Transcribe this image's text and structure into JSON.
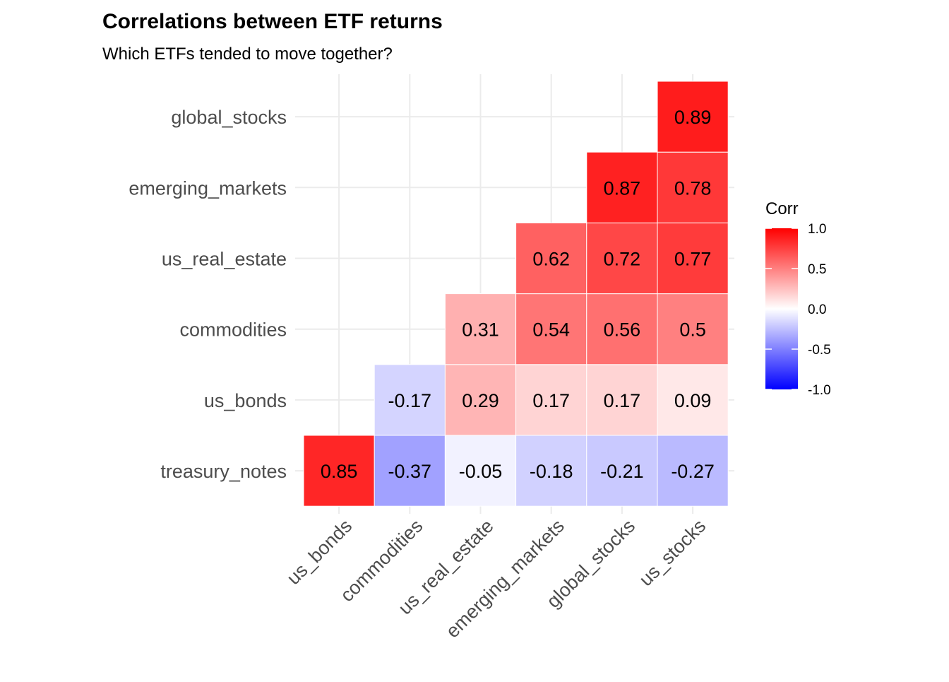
{
  "chart_data": {
    "type": "heatmap",
    "title": "Correlations between ETF returns",
    "subtitle": "Which ETFs tended to move together?",
    "xlabel": "",
    "ylabel": "",
    "x_categories": [
      "us_bonds",
      "commodities",
      "us_real_estate",
      "emerging_markets",
      "global_stocks",
      "us_stocks"
    ],
    "y_categories": [
      "treasury_notes",
      "us_bonds",
      "commodities",
      "us_real_estate",
      "emerging_markets",
      "global_stocks"
    ],
    "cells": [
      {
        "x": "us_bonds",
        "y": "treasury_notes",
        "value": 0.85,
        "label": "0.85"
      },
      {
        "x": "commodities",
        "y": "treasury_notes",
        "value": -0.37,
        "label": "-0.37"
      },
      {
        "x": "us_real_estate",
        "y": "treasury_notes",
        "value": -0.05,
        "label": "-0.05"
      },
      {
        "x": "emerging_markets",
        "y": "treasury_notes",
        "value": -0.18,
        "label": "-0.18"
      },
      {
        "x": "global_stocks",
        "y": "treasury_notes",
        "value": -0.21,
        "label": "-0.21"
      },
      {
        "x": "us_stocks",
        "y": "treasury_notes",
        "value": -0.27,
        "label": "-0.27"
      },
      {
        "x": "commodities",
        "y": "us_bonds",
        "value": -0.17,
        "label": "-0.17"
      },
      {
        "x": "us_real_estate",
        "y": "us_bonds",
        "value": 0.29,
        "label": "0.29"
      },
      {
        "x": "emerging_markets",
        "y": "us_bonds",
        "value": 0.17,
        "label": "0.17"
      },
      {
        "x": "global_stocks",
        "y": "us_bonds",
        "value": 0.17,
        "label": "0.17"
      },
      {
        "x": "us_stocks",
        "y": "us_bonds",
        "value": 0.09,
        "label": "0.09"
      },
      {
        "x": "us_real_estate",
        "y": "commodities",
        "value": 0.31,
        "label": "0.31"
      },
      {
        "x": "emerging_markets",
        "y": "commodities",
        "value": 0.54,
        "label": "0.54"
      },
      {
        "x": "global_stocks",
        "y": "commodities",
        "value": 0.56,
        "label": "0.56"
      },
      {
        "x": "us_stocks",
        "y": "commodities",
        "value": 0.5,
        "label": "0.5"
      },
      {
        "x": "emerging_markets",
        "y": "us_real_estate",
        "value": 0.62,
        "label": "0.62"
      },
      {
        "x": "global_stocks",
        "y": "us_real_estate",
        "value": 0.72,
        "label": "0.72"
      },
      {
        "x": "us_stocks",
        "y": "us_real_estate",
        "value": 0.77,
        "label": "0.77"
      },
      {
        "x": "global_stocks",
        "y": "emerging_markets",
        "value": 0.87,
        "label": "0.87"
      },
      {
        "x": "us_stocks",
        "y": "emerging_markets",
        "value": 0.78,
        "label": "0.78"
      },
      {
        "x": "us_stocks",
        "y": "global_stocks",
        "value": 0.89,
        "label": "0.89"
      }
    ],
    "legend": {
      "title": "Corr",
      "placement": "right",
      "range": [
        -1,
        1
      ],
      "ticks": [
        {
          "value": 1.0,
          "label": "1.0"
        },
        {
          "value": 0.5,
          "label": "0.5"
        },
        {
          "value": 0.0,
          "label": "0.0"
        },
        {
          "value": -0.5,
          "label": "-0.5"
        },
        {
          "value": -1.0,
          "label": "-1.0"
        }
      ]
    },
    "colors": {
      "low": "#0000ff",
      "mid": "#ffffff",
      "high": "#ff0000"
    },
    "grid": true
  }
}
